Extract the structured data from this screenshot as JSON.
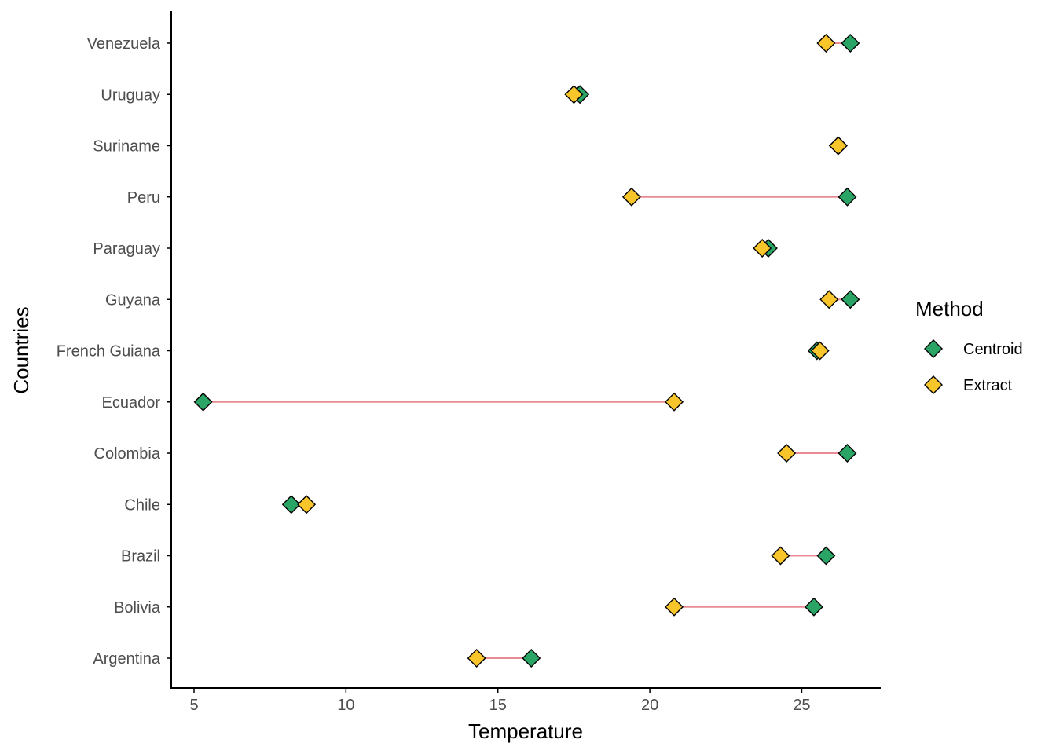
{
  "chart_data": {
    "type": "dumbbell",
    "title": "",
    "xlabel": "Temperature",
    "ylabel": "Countries",
    "xlim": [
      4.25,
      27.6
    ],
    "xticks": [
      5,
      10,
      15,
      20,
      25
    ],
    "grid": false,
    "legend": {
      "title": "Method",
      "position": "right",
      "entries": [
        {
          "name": "Centroid",
          "color": "#2aa565"
        },
        {
          "name": "Extract",
          "color": "#f8c52a"
        }
      ]
    },
    "segment_color": "#e88b94",
    "categories": [
      "Argentina",
      "Bolivia",
      "Brazil",
      "Chile",
      "Colombia",
      "Ecuador",
      "French Guiana",
      "Guyana",
      "Paraguay",
      "Peru",
      "Suriname",
      "Uruguay",
      "Venezuela"
    ],
    "series": [
      {
        "name": "Centroid",
        "values": [
          16.1,
          25.4,
          25.8,
          8.2,
          26.5,
          5.3,
          25.5,
          26.6,
          23.9,
          26.5,
          26.2,
          17.7,
          26.6
        ]
      },
      {
        "name": "Extract",
        "values": [
          14.3,
          20.8,
          24.3,
          8.7,
          24.5,
          20.8,
          25.6,
          25.9,
          23.7,
          19.4,
          26.2,
          17.5,
          25.8
        ]
      }
    ]
  }
}
